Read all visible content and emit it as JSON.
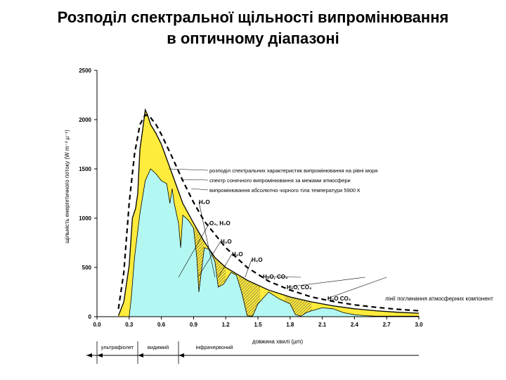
{
  "title_line1": "Розподіл спектральної щільності випромінювання",
  "title_line2": "в оптичному діапазоні",
  "chart_data": {
    "type": "area",
    "xlabel": "довжина хвилі (µm)",
    "ylabel": "щільність енергетичного потоку (W m⁻² µ⁻¹)",
    "xlim": [
      0.0,
      3.0
    ],
    "ylim": [
      0,
      2500
    ],
    "x_ticks": [
      "0.0",
      "0.3",
      "0.6",
      "0.9",
      "1.2",
      "1.5",
      "1.8",
      "2.1",
      "2.4",
      "2.7",
      "3.0"
    ],
    "y_ticks": [
      "0",
      "500",
      "1000",
      "1500",
      "2000",
      "2500"
    ],
    "grid": false,
    "colors": {
      "top_atmosphere": "#ffeb3b",
      "sea_level": "#b3f7f2",
      "blackbody_fill": "#d0d0d0",
      "absorption_hatch": "#555555"
    },
    "series": [
      {
        "name": "спектр сонячного випромінювання за межами атмосфери",
        "x": [
          0.2,
          0.25,
          0.3,
          0.33,
          0.36,
          0.38,
          0.4,
          0.42,
          0.45,
          0.47,
          0.5,
          0.55,
          0.6,
          0.7,
          0.8,
          0.9,
          1.0,
          1.1,
          1.2,
          1.4,
          1.6,
          1.8,
          2.0,
          2.2,
          2.4,
          2.6,
          2.8,
          3.0
        ],
        "values": [
          10,
          150,
          520,
          1000,
          1100,
          1250,
          1700,
          1850,
          2100,
          2050,
          1950,
          1860,
          1750,
          1450,
          1150,
          950,
          760,
          600,
          500,
          370,
          270,
          200,
          150,
          110,
          80,
          60,
          45,
          35
        ]
      },
      {
        "name": "розподіл спектральних характеристик випромінювання на рівні моря",
        "x": [
          0.3,
          0.32,
          0.35,
          0.4,
          0.45,
          0.5,
          0.55,
          0.6,
          0.65,
          0.68,
          0.7,
          0.72,
          0.76,
          0.78,
          0.8,
          0.85,
          0.9,
          0.93,
          0.95,
          1.0,
          1.05,
          1.1,
          1.13,
          1.18,
          1.25,
          1.3,
          1.35,
          1.4,
          1.45,
          1.5,
          1.6,
          1.7,
          1.8,
          1.85,
          1.9,
          1.95,
          2.0,
          2.1,
          2.2,
          2.3,
          2.4,
          2.5,
          2.6,
          2.8,
          3.0
        ],
        "values": [
          0,
          200,
          600,
          1050,
          1380,
          1500,
          1450,
          1380,
          1350,
          1150,
          1300,
          1150,
          950,
          700,
          1030,
          980,
          900,
          600,
          250,
          700,
          680,
          560,
          300,
          330,
          450,
          420,
          240,
          10,
          5,
          130,
          250,
          180,
          130,
          20,
          5,
          40,
          60,
          90,
          80,
          40,
          20,
          10,
          5,
          5,
          5
        ]
      },
      {
        "name": "випромінювання абсолютно чорного тіла температури 5900 К",
        "x": [
          0.2,
          0.25,
          0.3,
          0.35,
          0.4,
          0.45,
          0.5,
          0.55,
          0.6,
          0.7,
          0.8,
          0.9,
          1.0,
          1.2,
          1.4,
          1.6,
          1.8,
          2.0,
          2.2,
          2.4,
          2.6,
          2.8,
          3.0
        ],
        "values": [
          80,
          450,
          1150,
          1650,
          1950,
          2050,
          2020,
          1950,
          1850,
          1620,
          1380,
          1160,
          970,
          700,
          500,
          360,
          270,
          200,
          155,
          120,
          95,
          75,
          60
        ]
      }
    ],
    "annotations": [
      {
        "text": "H₂O",
        "x": 1.1
      },
      {
        "text": "O₂, H₂O",
        "x": 0.76
      },
      {
        "text": "H₂O",
        "x": 0.94
      },
      {
        "text": "H₂O",
        "x": 1.13
      },
      {
        "text": "H₂O",
        "x": 1.38
      },
      {
        "text": "H₂O, CO₂",
        "x": 1.9
      },
      {
        "text": "H₂O, CO₂",
        "x": 2.5
      },
      {
        "text": "H₂O  CO₂",
        "x": 2.7
      },
      {
        "text": "лінії поглинання атмосферних компонент"
      }
    ],
    "bands": [
      {
        "label": "ультрафіолет",
        "from": 0.0,
        "to": 0.38
      },
      {
        "label": "видимий",
        "from": 0.38,
        "to": 0.76
      },
      {
        "label": "інфрачервоний",
        "from": 0.76,
        "to": 3.0
      }
    ]
  }
}
